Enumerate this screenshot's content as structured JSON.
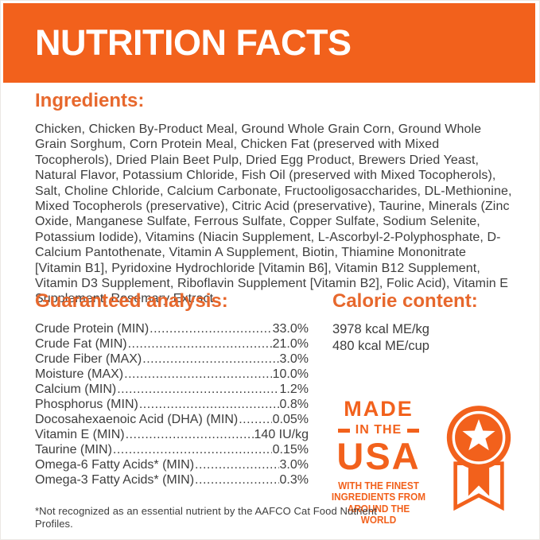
{
  "colors": {
    "accent": "#F2611C",
    "heading": "#E7682D",
    "text": "#3D3D3D",
    "banner_text": "#FFFFFF"
  },
  "header": {
    "title": "NUTRITION FACTS"
  },
  "ingredients": {
    "heading": "Ingredients:",
    "text": "Chicken, Chicken By-Product Meal, Ground Whole Grain Corn, Ground Whole Grain Sorghum, Corn Protein Meal, Chicken Fat (preserved with Mixed Tocopherols), Dried Plain Beet Pulp, Dried Egg Product, Brewers Dried Yeast, Natural Flavor, Potassium Chloride, Fish Oil (preserved with Mixed Tocopherols), Salt, Choline Chloride, Calcium Carbonate, Fructooligosaccharides, DL-Methionine, Mixed Tocopherols (preservative), Citric Acid (preservative), Taurine, Minerals (Zinc Oxide, Manganese Sulfate, Ferrous Sulfate, Copper Sulfate, Sodium Selenite, Potassium Iodide), Vitamins (Niacin Supplement, L-Ascorbyl-2-Polyphosphate, D-Calcium Pantothenate, Vitamin A Supplement, Biotin, Thiamine Mononitrate [Vitamin B1], Pyridoxine Hydrochloride [Vitamin B6], Vitamin B12 Supplement, Vitamin D3 Supplement, Riboflavin Supplement [Vitamin B2], Folic Acid), Vitamin E Supplement, Rosemary Extract."
  },
  "analysis": {
    "heading": "Guaranteed analysis:",
    "rows": [
      {
        "label": "Crude Protein (MIN)",
        "value": "33.0%"
      },
      {
        "label": "Crude Fat (MIN)",
        "value": "21.0%"
      },
      {
        "label": "Crude Fiber (MAX)",
        "value": "3.0%"
      },
      {
        "label": "Moisture (MAX)",
        "value": "10.0%"
      },
      {
        "label": "Calcium (MIN)",
        "value": "1.2%"
      },
      {
        "label": "Phosphorus (MIN)",
        "value": "0.8%"
      },
      {
        "label": "Docosahexaenoic Acid (DHA) (MIN)",
        "value": "0.05%"
      },
      {
        "label": "Vitamin E (MIN)",
        "value": "140 IU/kg"
      },
      {
        "label": "Taurine (MIN)",
        "value": "0.15%"
      },
      {
        "label": "Omega-6 Fatty Acids* (MIN)",
        "value": "3.0%"
      },
      {
        "label": "Omega-3 Fatty Acids* (MIN)",
        "value": "0.3%"
      }
    ]
  },
  "calories": {
    "heading": "Calorie content:",
    "lines": [
      "3978 kcal ME/kg",
      "480 kcal ME/cup"
    ]
  },
  "badge": {
    "made": "MADE",
    "in_the": "IN THE",
    "usa": "USA",
    "tagline": "WITH THE FINEST\nINGREDIENTS FROM\nAROUND THE WORLD",
    "icon": "medal-ribbon-icon"
  },
  "footnote": "*Not recognized as an essential nutrient by the AAFCO Cat Food Nutrient Profiles."
}
